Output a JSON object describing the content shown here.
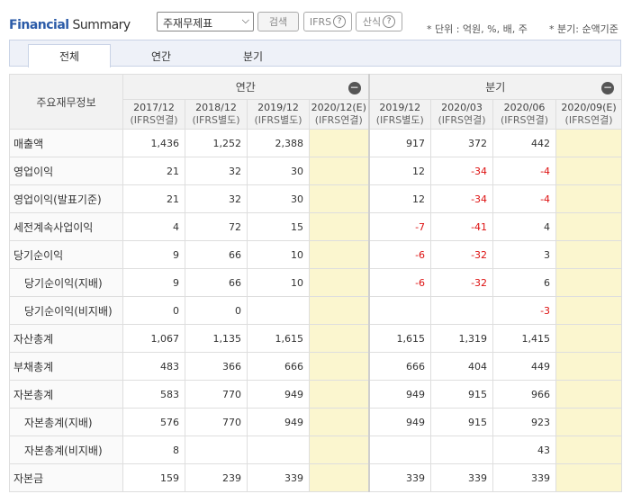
{
  "header": {
    "title_bold": "Financial",
    "title_rest": "Summary",
    "select_value": "주재무제표",
    "search_button": "검색",
    "ifrs_button": "IFRS",
    "formula_button": "산식",
    "help_glyph": "?",
    "unit_text": "* 단위 : 억원, %, 배, 주",
    "quarter_text": "* 분기: 순액기준"
  },
  "tabs": [
    "전체",
    "연간",
    "분기"
  ],
  "table": {
    "corner_label": "주요재무정보",
    "annual_group": "연간",
    "quarter_group": "분기",
    "minus_glyph": "−",
    "periods": [
      {
        "date": "2017/12",
        "basis": "(IFRS연결)"
      },
      {
        "date": "2018/12",
        "basis": "(IFRS별도)"
      },
      {
        "date": "2019/12",
        "basis": "(IFRS별도)"
      },
      {
        "date": "2020/12(E)",
        "basis": "(IFRS연결)"
      },
      {
        "date": "2019/12",
        "basis": "(IFRS별도)"
      },
      {
        "date": "2020/03",
        "basis": "(IFRS연결)"
      },
      {
        "date": "2020/06",
        "basis": "(IFRS연결)"
      },
      {
        "date": "2020/09(E)",
        "basis": "(IFRS연결)"
      }
    ],
    "rows": [
      {
        "label": "매출액",
        "sub": false,
        "values": [
          "1,436",
          "1,252",
          "2,388",
          "",
          "917",
          "372",
          "442",
          ""
        ]
      },
      {
        "label": "영업이익",
        "sub": false,
        "values": [
          "21",
          "32",
          "30",
          "",
          "12",
          "-34",
          "-4",
          ""
        ]
      },
      {
        "label": "영업이익(발표기준)",
        "sub": false,
        "values": [
          "21",
          "32",
          "30",
          "",
          "12",
          "-34",
          "-4",
          ""
        ]
      },
      {
        "label": "세전계속사업이익",
        "sub": false,
        "values": [
          "4",
          "72",
          "15",
          "",
          "-7",
          "-41",
          "4",
          ""
        ]
      },
      {
        "label": "당기순이익",
        "sub": false,
        "values": [
          "9",
          "66",
          "10",
          "",
          "-6",
          "-32",
          "3",
          ""
        ]
      },
      {
        "label": "당기순이익(지배)",
        "sub": true,
        "values": [
          "9",
          "66",
          "10",
          "",
          "-6",
          "-32",
          "6",
          ""
        ]
      },
      {
        "label": "당기순이익(비지배)",
        "sub": true,
        "values": [
          "0",
          "0",
          "",
          "",
          "",
          "",
          "-3",
          ""
        ]
      },
      {
        "label": "자산총계",
        "sub": false,
        "values": [
          "1,067",
          "1,135",
          "1,615",
          "",
          "1,615",
          "1,319",
          "1,415",
          ""
        ]
      },
      {
        "label": "부채총계",
        "sub": false,
        "values": [
          "483",
          "366",
          "666",
          "",
          "666",
          "404",
          "449",
          ""
        ]
      },
      {
        "label": "자본총계",
        "sub": false,
        "values": [
          "583",
          "770",
          "949",
          "",
          "949",
          "915",
          "966",
          ""
        ]
      },
      {
        "label": "자본총계(지배)",
        "sub": true,
        "values": [
          "576",
          "770",
          "949",
          "",
          "949",
          "915",
          "923",
          ""
        ]
      },
      {
        "label": "자본총계(비지배)",
        "sub": true,
        "values": [
          "8",
          "",
          "",
          "",
          "",
          "",
          "43",
          ""
        ]
      },
      {
        "label": "자본금",
        "sub": false,
        "values": [
          "159",
          "239",
          "339",
          "",
          "339",
          "339",
          "339",
          ""
        ]
      }
    ]
  },
  "colors": {
    "brand_blue": "#2b5ba8",
    "negative": "#dd1111",
    "estimate_bg": "#fbf6cf"
  }
}
